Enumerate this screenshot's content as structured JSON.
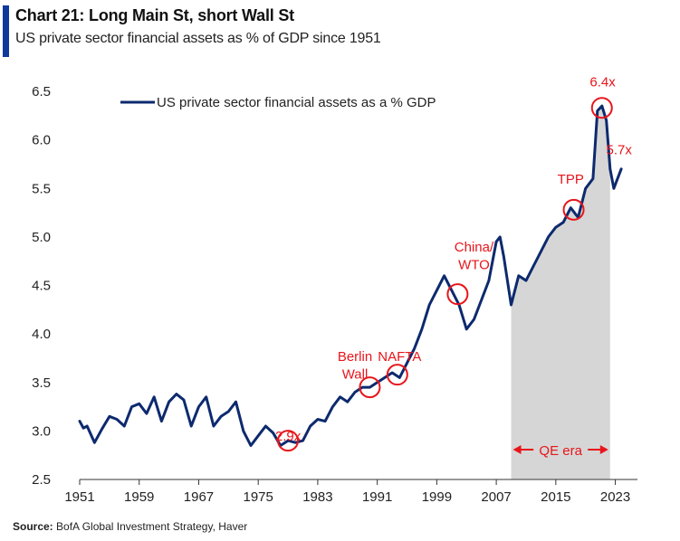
{
  "title": "Chart 21: Long Main St, short Wall St",
  "subtitle": "US private sector financial assets as % of GDP since 1951",
  "source": {
    "label": "Source:",
    "text": "BofA Global Investment Strategy, Haver"
  },
  "colors": {
    "line": "#0d2a6e",
    "accent": "#0d3a9b",
    "shade": "#d6d6d6",
    "annotation": "#e8151b"
  },
  "chart_data": {
    "type": "line",
    "title": "Chart 21: Long Main St, short Wall St",
    "xlabel": "",
    "ylabel": "",
    "xlim": [
      1951,
      2025
    ],
    "ylim": [
      2.5,
      6.5
    ],
    "yticks": [
      "2.5",
      "3.0",
      "3.5",
      "4.0",
      "4.5",
      "5.0",
      "5.5",
      "6.0",
      "6.5"
    ],
    "xticks": [
      "1951",
      "1959",
      "1967",
      "1975",
      "1983",
      "1991",
      "1999",
      "2007",
      "2015",
      "2023"
    ],
    "legend": {
      "position": "top-left",
      "label": "US private sector financial assets as a % GDP"
    },
    "series": [
      {
        "name": "US private sector financial assets as a % GDP",
        "points": [
          [
            1951,
            3.1
          ],
          [
            1951.5,
            3.03
          ],
          [
            1952,
            3.05
          ],
          [
            1953,
            2.88
          ],
          [
            1954,
            3.02
          ],
          [
            1955,
            3.15
          ],
          [
            1956,
            3.12
          ],
          [
            1957,
            3.05
          ],
          [
            1958,
            3.25
          ],
          [
            1959,
            3.28
          ],
          [
            1960,
            3.18
          ],
          [
            1961,
            3.35
          ],
          [
            1962,
            3.1
          ],
          [
            1963,
            3.3
          ],
          [
            1964,
            3.38
          ],
          [
            1965,
            3.32
          ],
          [
            1966,
            3.05
          ],
          [
            1967,
            3.25
          ],
          [
            1968,
            3.35
          ],
          [
            1969,
            3.05
          ],
          [
            1970,
            3.15
          ],
          [
            1971,
            3.2
          ],
          [
            1972,
            3.3
          ],
          [
            1973,
            3.0
          ],
          [
            1974,
            2.85
          ],
          [
            1975,
            2.95
          ],
          [
            1976,
            3.05
          ],
          [
            1977,
            2.98
          ],
          [
            1978,
            2.85
          ],
          [
            1979,
            2.9
          ],
          [
            1980,
            2.88
          ],
          [
            1981,
            2.9
          ],
          [
            1982,
            3.05
          ],
          [
            1983,
            3.12
          ],
          [
            1984,
            3.1
          ],
          [
            1985,
            3.25
          ],
          [
            1986,
            3.35
          ],
          [
            1987,
            3.3
          ],
          [
            1988,
            3.4
          ],
          [
            1989,
            3.45
          ],
          [
            1990,
            3.45
          ],
          [
            1991,
            3.5
          ],
          [
            1992,
            3.55
          ],
          [
            1993,
            3.6
          ],
          [
            1994,
            3.55
          ],
          [
            1995,
            3.7
          ],
          [
            1996,
            3.85
          ],
          [
            1997,
            4.05
          ],
          [
            1998,
            4.3
          ],
          [
            1999,
            4.45
          ],
          [
            2000,
            4.6
          ],
          [
            2001,
            4.45
          ],
          [
            2002,
            4.3
          ],
          [
            2003,
            4.05
          ],
          [
            2004,
            4.15
          ],
          [
            2005,
            4.35
          ],
          [
            2006,
            4.55
          ],
          [
            2007,
            4.95
          ],
          [
            2007.5,
            5.0
          ],
          [
            2008,
            4.8
          ],
          [
            2009,
            4.3
          ],
          [
            2010,
            4.6
          ],
          [
            2011,
            4.55
          ],
          [
            2012,
            4.7
          ],
          [
            2013,
            4.85
          ],
          [
            2014,
            5.0
          ],
          [
            2015,
            5.1
          ],
          [
            2016,
            5.15
          ],
          [
            2017,
            5.3
          ],
          [
            2018,
            5.2
          ],
          [
            2019,
            5.5
          ],
          [
            2020,
            5.6
          ],
          [
            2020.6,
            6.3
          ],
          [
            2021.2,
            6.35
          ],
          [
            2021.8,
            6.2
          ],
          [
            2022.3,
            5.7
          ],
          [
            2022.8,
            5.5
          ],
          [
            2023.3,
            5.6
          ],
          [
            2023.8,
            5.7
          ]
        ]
      }
    ],
    "shaded_region": {
      "label": "QE era",
      "x_start": 2009,
      "x_end": 2022.3
    },
    "annotations": [
      {
        "text": "2.9x",
        "x": 1979,
        "y": 2.9
      },
      {
        "text": "Berlin",
        "x": 1988,
        "y": 3.72
      },
      {
        "text": "Wall",
        "x": 1988,
        "y": 3.54
      },
      {
        "text": "NAFTA",
        "x": 1994,
        "y": 3.72
      },
      {
        "text": "China/",
        "x": 2004,
        "y": 4.85
      },
      {
        "text": "WTO",
        "x": 2004,
        "y": 4.67
      },
      {
        "text": "TPP",
        "x": 2017,
        "y": 5.55
      },
      {
        "text": "6.4x",
        "x": 2021.3,
        "y": 6.55
      },
      {
        "text": "5.7x",
        "x": 2023.5,
        "y": 5.85
      }
    ],
    "highlight_circles": [
      {
        "x": 1979,
        "y": 2.9
      },
      {
        "x": 1990,
        "y": 3.45
      },
      {
        "x": 1993.7,
        "y": 3.58
      },
      {
        "x": 2001.8,
        "y": 4.41
      },
      {
        "x": 2017.4,
        "y": 5.28
      },
      {
        "x": 2021.2,
        "y": 6.33
      }
    ]
  }
}
